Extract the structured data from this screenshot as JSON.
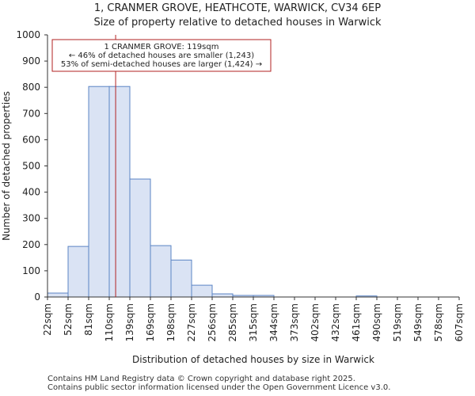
{
  "chart_data": {
    "type": "bar",
    "title": "1, CRANMER GROVE, HEATHCOTE, WARWICK, CV34 6EP",
    "subtitle": "Size of property relative to detached houses in Warwick",
    "xlabel": "Distribution of detached houses by size in Warwick",
    "ylabel": "Number of detached properties",
    "bin_edges_label": [
      "22sqm",
      "52sqm",
      "81sqm",
      "110sqm",
      "139sqm",
      "169sqm",
      "198sqm",
      "227sqm",
      "256sqm",
      "285sqm",
      "315sqm",
      "344sqm",
      "373sqm",
      "402sqm",
      "432sqm",
      "461sqm",
      "490sqm",
      "519sqm",
      "549sqm",
      "578sqm",
      "607sqm"
    ],
    "values": [
      15,
      193,
      803,
      803,
      450,
      196,
      141,
      45,
      12,
      6,
      6,
      0,
      0,
      0,
      0,
      4,
      0,
      0,
      0,
      0
    ],
    "ylim": [
      0,
      1000
    ],
    "yticks": [
      0,
      100,
      200,
      300,
      400,
      500,
      600,
      700,
      800,
      900,
      1000
    ],
    "marker": {
      "value_bin_position": 3.31,
      "label_line1": "1 CRANMER GROVE: 119sqm",
      "label_line2": "← 46% of detached houses are smaller (1,243)",
      "label_line3": "53% of semi-detached houses are larger (1,424) →"
    },
    "bar_color": "#dae3f4",
    "bar_edge_color": "#5b84c4",
    "marker_color": "#b22222"
  },
  "footer": {
    "line1": "Contains HM Land Registry data © Crown copyright and database right 2025.",
    "line2": "Contains public sector information licensed under the Open Government Licence v3.0."
  }
}
